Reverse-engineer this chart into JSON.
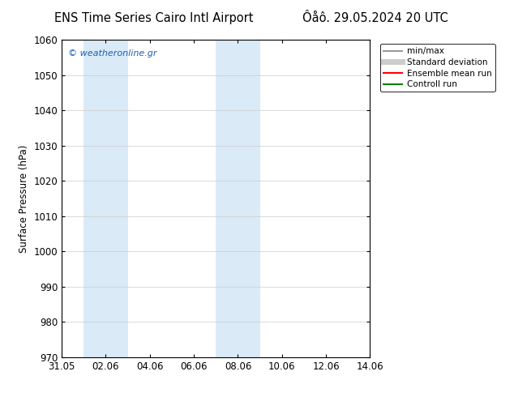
{
  "title_left": "ENS Time Series Cairo Intl Airport",
  "title_right": "Ôåô. 29.05.2024 20 UTC",
  "ylabel": "Surface Pressure (hPa)",
  "ylim": [
    970,
    1060
  ],
  "yticks": [
    970,
    980,
    990,
    1000,
    1010,
    1020,
    1030,
    1040,
    1050,
    1060
  ],
  "xlim": [
    0,
    14
  ],
  "xtick_labels": [
    "31.05",
    "02.06",
    "04.06",
    "06.06",
    "08.06",
    "10.06",
    "12.06",
    "14.06"
  ],
  "xtick_positions": [
    0,
    2,
    4,
    6,
    8,
    10,
    12,
    14
  ],
  "shaded_bands": [
    {
      "x_start": 1,
      "x_end": 3
    },
    {
      "x_start": 7,
      "x_end": 9
    }
  ],
  "shaded_color": "#daeaf7",
  "watermark_text": "© weatheronline.gr",
  "watermark_color": "#1a5fb4",
  "legend_items": [
    {
      "label": "min/max",
      "color": "#999999",
      "lw": 1.5
    },
    {
      "label": "Standard deviation",
      "color": "#cccccc",
      "lw": 5
    },
    {
      "label": "Ensemble mean run",
      "color": "#ff0000",
      "lw": 1.5
    },
    {
      "label": "Controll run",
      "color": "#008000",
      "lw": 1.5
    }
  ],
  "bg_color": "#ffffff",
  "spine_color": "#000000",
  "grid_color": "#cccccc",
  "title_fontsize": 10.5,
  "tick_fontsize": 8.5,
  "ylabel_fontsize": 8.5,
  "watermark_fontsize": 8,
  "legend_fontsize": 7.5
}
